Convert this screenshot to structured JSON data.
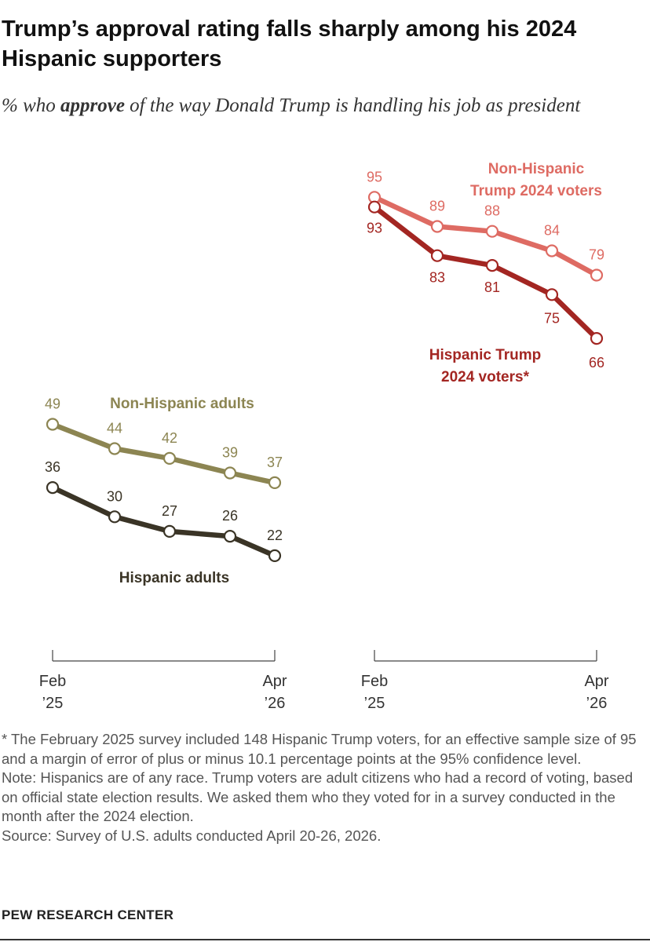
{
  "title": "Trump’s approval rating falls sharply among his 2024 Hispanic supporters",
  "subtitle": {
    "prefix": "% who ",
    "emphasis": "approve",
    "suffix": " of the way Donald Trump is handling his job as president"
  },
  "chart_data": [
    {
      "type": "line",
      "x": [
        "Feb 2025",
        "",
        "",
        "",
        "Apr 2026"
      ],
      "tick_labels": [
        {
          "top": "Feb",
          "bottom": "’25"
        },
        {
          "top": "Apr",
          "bottom": "’26"
        }
      ],
      "series": [
        {
          "name": "Non-Hispanic adults",
          "values": [
            49,
            44,
            42,
            39,
            37
          ],
          "color": "#8c8552"
        },
        {
          "name": "Hispanic adults",
          "values": [
            36,
            30,
            27,
            26,
            22
          ],
          "color": "#3a3426"
        }
      ]
    },
    {
      "type": "line",
      "x": [
        "Feb 2025",
        "",
        "",
        "",
        "Apr 2026"
      ],
      "tick_labels": [
        {
          "top": "Feb",
          "bottom": "’25"
        },
        {
          "top": "Apr",
          "bottom": "’26"
        }
      ],
      "series": [
        {
          "name": "Non-Hispanic Trump 2024 voters",
          "values": [
            95,
            89,
            88,
            84,
            79
          ],
          "color": "#de6b63"
        },
        {
          "name": "Hispanic Trump 2024 voters*",
          "values": [
            93,
            83,
            81,
            75,
            66
          ],
          "color": "#a32622"
        }
      ]
    }
  ],
  "labels": {
    "non_hispanic_adults": "Non-Hispanic adults",
    "hispanic_adults": "Hispanic adults",
    "non_hispanic_trump_line1": "Non-Hispanic",
    "non_hispanic_trump_line2": "Trump 2024 voters",
    "hispanic_trump_line1": "Hispanic Trump",
    "hispanic_trump_line2": "2024 voters*"
  },
  "notes": {
    "footnote": "* The February 2025 survey included 148 Hispanic Trump voters, for an effective sample size of 95 and a margin of error of plus or minus 10.1 percentage points at the 95% confidence level.",
    "note": "Note: Hispanics are of any race. Trump voters are adult citizens who had a record of voting, based on official state election results. We asked them who they voted for in a survey conducted in the month after the 2024 election.",
    "source": "Source: Survey of U.S. adults conducted April 20-26, 2026."
  },
  "org": "PEW RESEARCH CENTER"
}
